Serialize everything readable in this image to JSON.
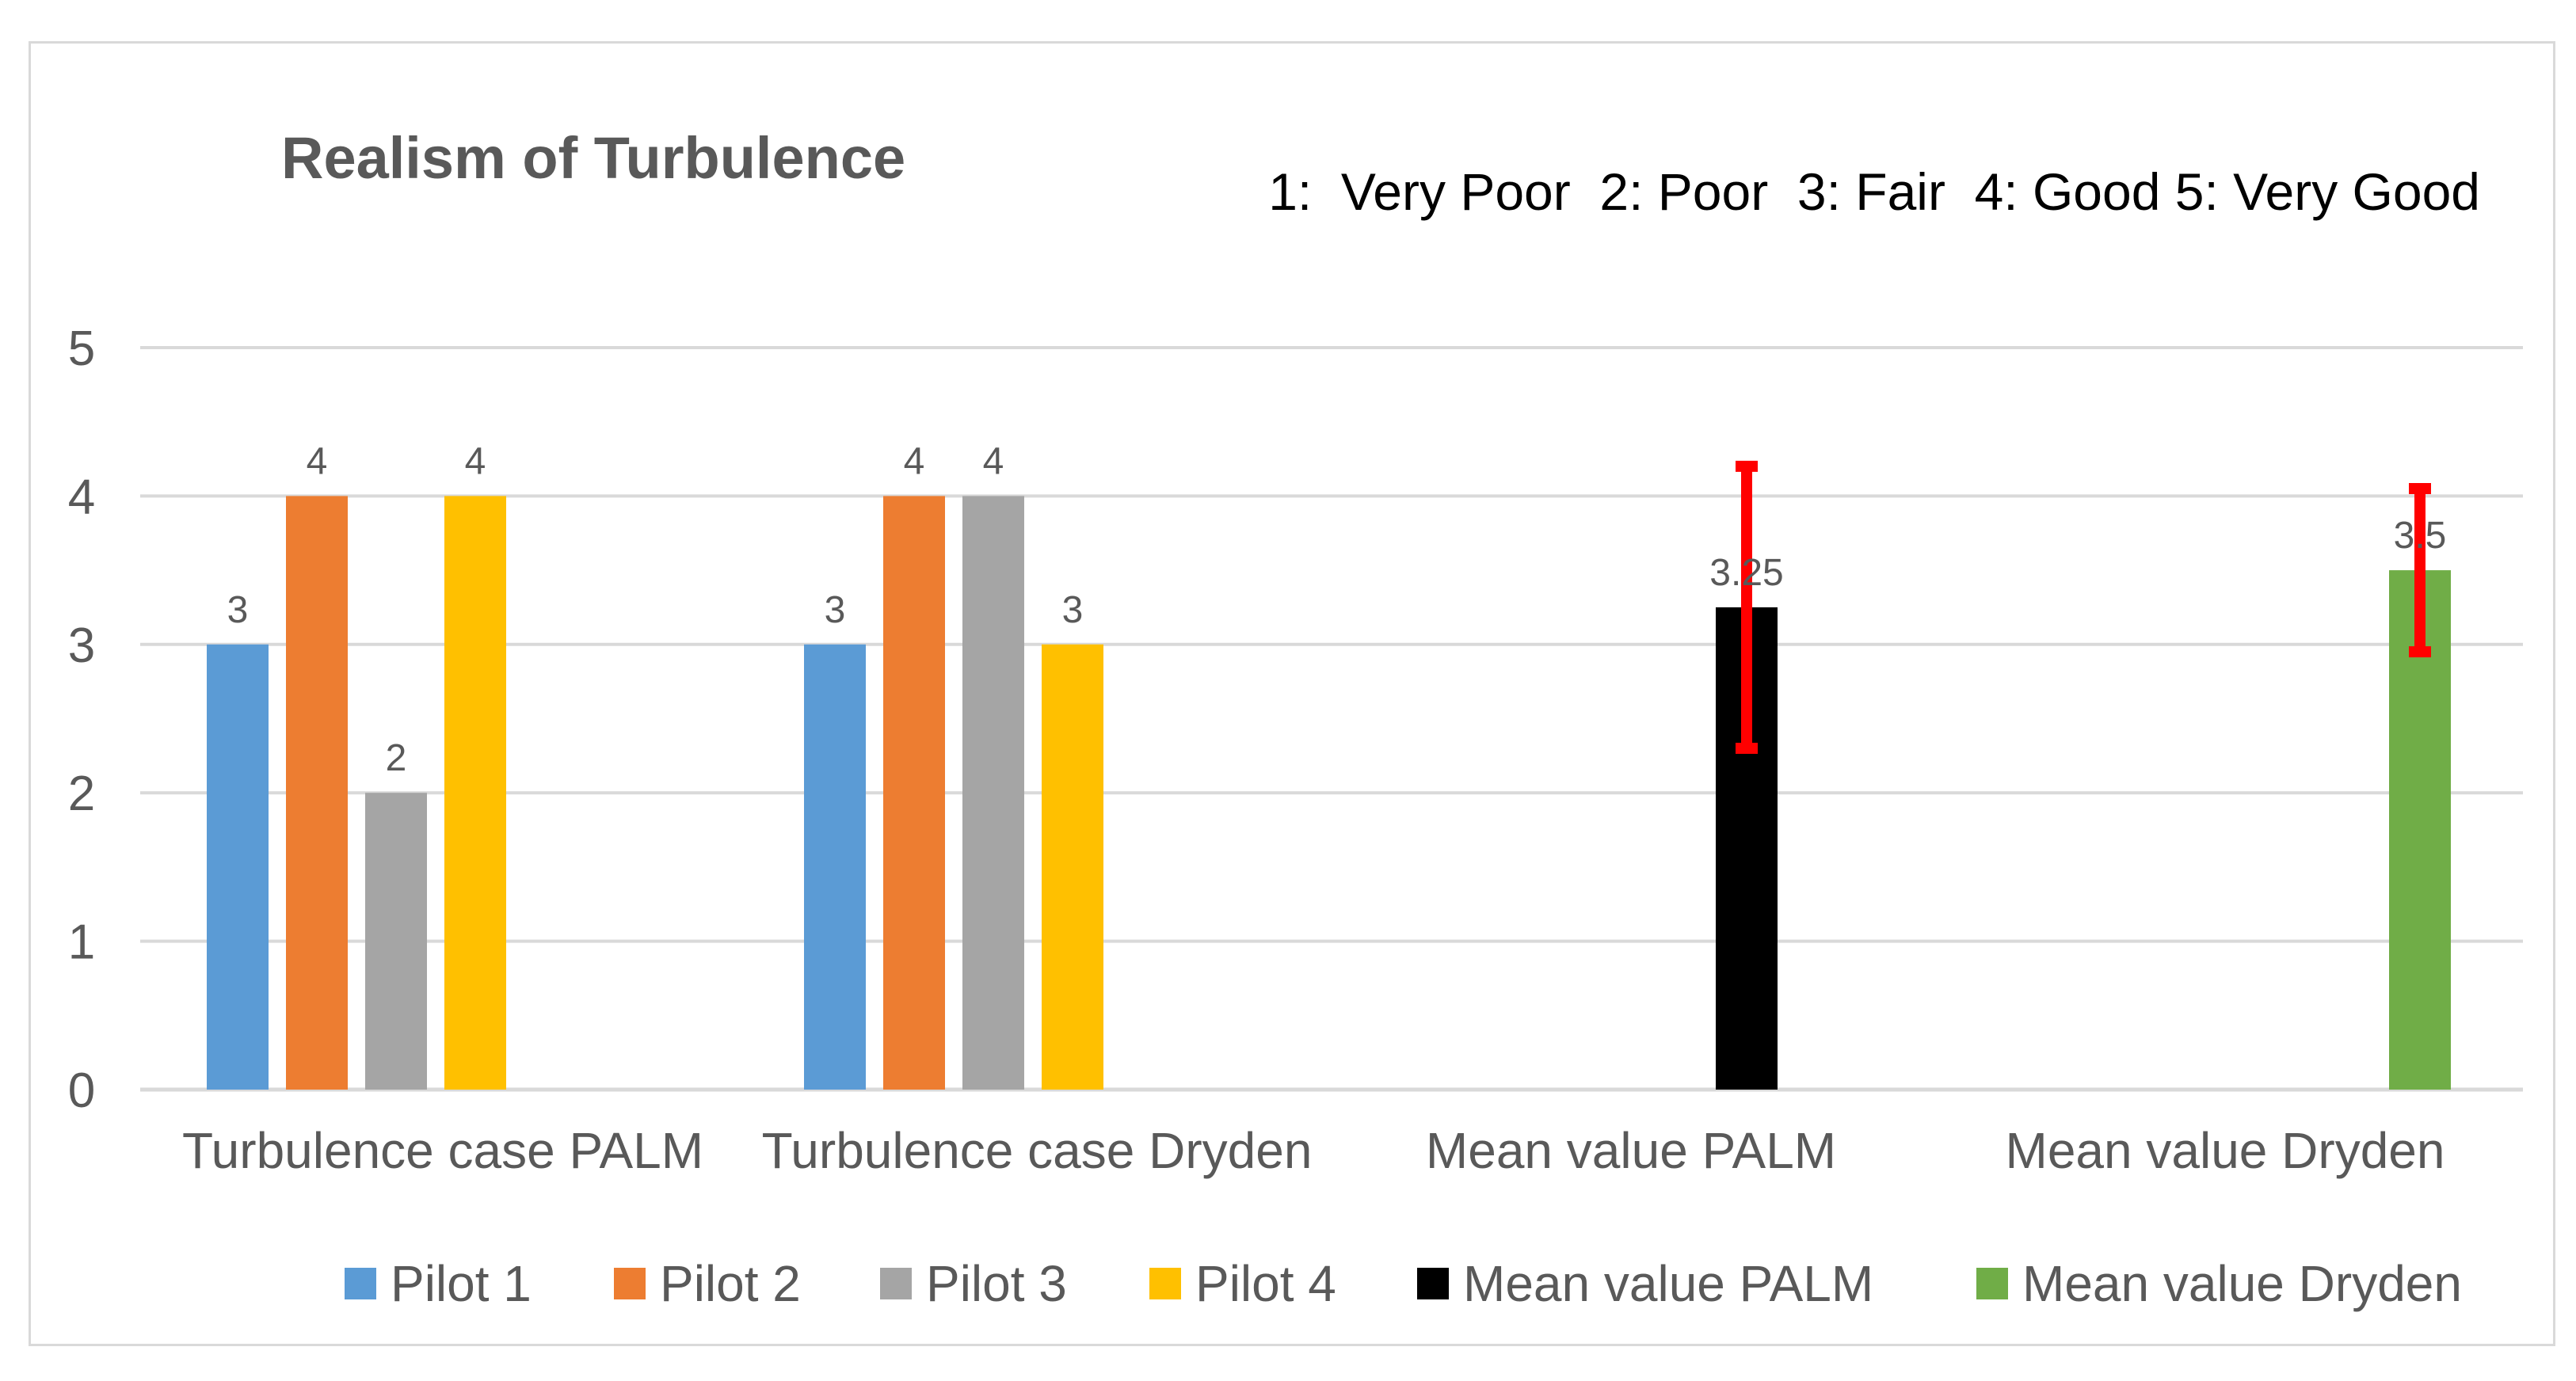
{
  "chart_data": {
    "type": "bar",
    "title": "Realism of Turbulence",
    "scale_note": "1:  Very Poor  2: Poor  3: Fair  4: Good 5: Very Good",
    "xlabel": "",
    "ylabel": "",
    "ylim": [
      0,
      5
    ],
    "yticks": [
      "0",
      "1",
      "2",
      "3",
      "4",
      "5"
    ],
    "grid": true,
    "legend_position": "bottom",
    "categories": [
      "Turbulence case PALM",
      "Turbulence case Dryden",
      "Mean value PALM",
      "Mean value Dryden"
    ],
    "series": [
      {
        "name": "Pilot 1",
        "color": "#5b9bd5",
        "values": [
          3,
          3,
          null,
          null
        ],
        "labels": [
          "3",
          "3",
          "",
          ""
        ]
      },
      {
        "name": "Pilot 2",
        "color": "#ed7d31",
        "values": [
          4,
          4,
          null,
          null
        ],
        "labels": [
          "4",
          "4",
          "",
          ""
        ]
      },
      {
        "name": "Pilot 3",
        "color": "#a5a5a5",
        "values": [
          2,
          4,
          null,
          null
        ],
        "labels": [
          "2",
          "4",
          "",
          ""
        ]
      },
      {
        "name": "Pilot 4",
        "color": "#ffc000",
        "values": [
          4,
          3,
          null,
          null
        ],
        "labels": [
          "4",
          "3",
          "",
          ""
        ]
      },
      {
        "name": "Mean value PALM",
        "color": "#000000",
        "values": [
          null,
          null,
          3.25,
          null
        ],
        "labels": [
          "",
          "",
          "3.25",
          ""
        ],
        "error": [
          null,
          null,
          [
            2.3,
            4.2
          ],
          null
        ]
      },
      {
        "name": "Mean value Dryden",
        "color": "#70ad47",
        "values": [
          null,
          null,
          null,
          3.5
        ],
        "labels": [
          "",
          "",
          "",
          "3.5"
        ],
        "error": [
          null,
          null,
          null,
          [
            2.95,
            4.05
          ]
        ]
      }
    ],
    "error_bar_color": "#ff0000"
  }
}
